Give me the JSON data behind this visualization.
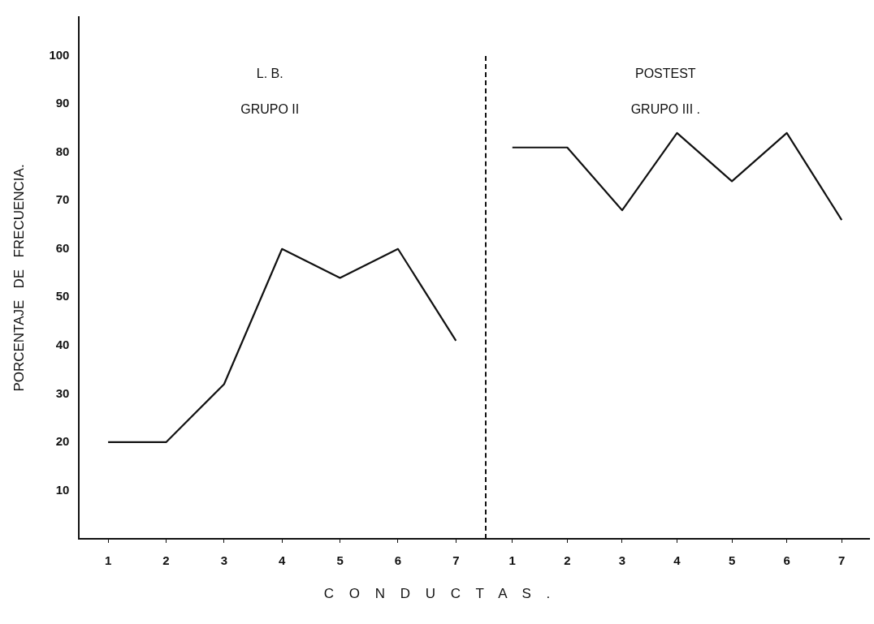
{
  "chart_data": [
    {
      "type": "line",
      "xlabel": "C O N D U C T A S .",
      "ylabel": "PORCENTAJE DE FRECUENCIA.",
      "categories": [
        "1",
        "2",
        "3",
        "4",
        "5",
        "6",
        "7"
      ],
      "ylim": [
        0,
        108
      ],
      "yticks": [
        10,
        20,
        30,
        40,
        50,
        60,
        70,
        80,
        90,
        100
      ],
      "series": [
        {
          "color": "#111111",
          "values": [
            20,
            20,
            32,
            60,
            54,
            60,
            41
          ]
        }
      ],
      "annotations": [
        "L. B.",
        "GRUPO II"
      ],
      "grid": false,
      "legend": false,
      "marker": "none",
      "line_style": "solid"
    },
    {
      "type": "line",
      "categories": [
        "1",
        "2",
        "3",
        "4",
        "5",
        "6",
        "7"
      ],
      "ylim": [
        0,
        100
      ],
      "yticks": [
        10,
        20,
        30,
        40,
        50,
        60,
        70,
        80,
        90,
        100
      ],
      "tick_labels": "x",
      "series": [
        {
          "color": "#111111",
          "values": [
            81,
            81,
            68,
            84,
            74,
            84,
            66
          ]
        }
      ],
      "annotations": [
        "POSTEST",
        "GRUPO III ."
      ],
      "grid": false,
      "legend": false,
      "marker": "none",
      "line_style": "solid"
    }
  ]
}
